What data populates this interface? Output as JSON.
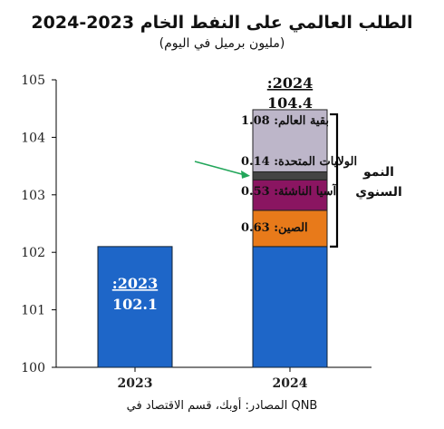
{
  "chart_data": {
    "type": "bar",
    "title": "الطلب العالمي على النفط الخام 2023-2024",
    "subtitle": "(مليون برميل في اليوم)",
    "source": "المصادر: أوبك، قسم الاقتصاد في QNB",
    "categories": [
      "2023",
      "2024"
    ],
    "ylim": [
      100,
      105
    ],
    "yticks": [
      100,
      101,
      102,
      103,
      104,
      105
    ],
    "grid": false,
    "base": {
      "label_year": ":2023",
      "label_value": "102.1",
      "value": 102.1,
      "color": "#1e66c8"
    },
    "stack_2024": [
      {
        "name": "الصين",
        "value": 0.63,
        "label": "الصين: 0.63",
        "color": "#e87a1a"
      },
      {
        "name": "آسيا الناشئة",
        "value": 0.53,
        "label": "آسيا الناشئة: 0.53",
        "color": "#8a1561"
      },
      {
        "name": "الولايات المتحدة",
        "value": 0.14,
        "label": "الولايات المتحدة: 0.14",
        "color": "#444444"
      },
      {
        "name": "بقية العالم",
        "value": 1.08,
        "label": "بقية العالم: 1.08",
        "color": "#bdb6c9"
      }
    ],
    "total_2024": {
      "label_year": ":2024",
      "label_value": "104.4",
      "value": 104.4
    },
    "bracket_label_line1": "النمو",
    "bracket_label_line2": "السنوي",
    "arrow_color": "#22a65a"
  }
}
